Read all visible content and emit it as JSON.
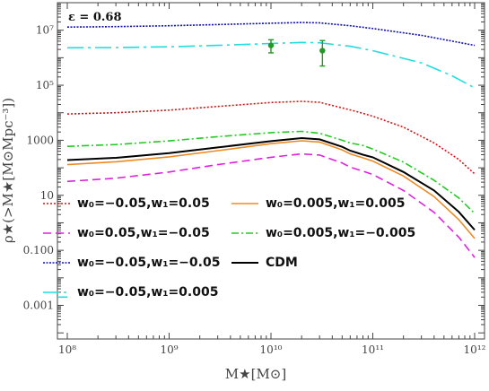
{
  "chart_data": {
    "type": "line",
    "annotation": "ε = 0.68",
    "xlabel": "M★[M⊙]",
    "ylabel": "ρ★(>M★[M⊙Mpc⁻³])",
    "x_scale": "log",
    "y_scale": "log",
    "xlim": [
      80000000.0,
      1250000000000.0
    ],
    "ylim": [
      6e-05,
      100000000.0
    ],
    "x_ticks": [
      {
        "value": 100000000.0,
        "label": "10⁸"
      },
      {
        "value": 1000000000.0,
        "label": "10⁹"
      },
      {
        "value": 10000000000.0,
        "label": "10¹⁰"
      },
      {
        "value": 100000000000.0,
        "label": "10¹¹"
      },
      {
        "value": 1000000000000.0,
        "label": "10¹²"
      }
    ],
    "y_ticks": [
      {
        "value": 10000000.0,
        "label": "10⁷"
      },
      {
        "value": 100000.0,
        "label": "10⁵"
      },
      {
        "value": 1000,
        "label": "1000"
      },
      {
        "value": 10,
        "label": "10"
      },
      {
        "value": 0.1,
        "label": "0.100"
      },
      {
        "value": 0.001,
        "label": "0.001"
      }
    ],
    "legend": [
      {
        "label": "w₀=−0.05,w₁=0.05",
        "color": "#dd1111",
        "dash": "2,2"
      },
      {
        "label": "w₀=0.005,w₁=0.005",
        "color": "#ee8a22",
        "dash": ""
      },
      {
        "label": "w₀=0.05,w₁=−0.05",
        "color": "#dd22dd",
        "dash": "9,5"
      },
      {
        "label": "w₀=0.005,w₁=−0.005",
        "color": "#22cc22",
        "dash": "8,3,2,3"
      },
      {
        "label": "w₀=−0.05,w₁=−0.05",
        "color": "#1111bb",
        "dash": "2,1.5"
      },
      {
        "label": "CDM",
        "color": "#000000",
        "dash": ""
      },
      {
        "label": "w₀=−0.05,w₁=0.005",
        "color": "#22dddd",
        "dash": "18,5,3,5"
      }
    ],
    "series": [
      {
        "name": "w₀=−0.05,w₁=−0.05",
        "color": "#1111bb",
        "dash": "2,1.5",
        "x": [
          100000000.0,
          300000000.0,
          1000000000.0,
          3000000000.0,
          10000000000.0,
          20000000000.0,
          30000000000.0,
          60000000000.0,
          100000000000.0,
          300000000000.0,
          1000000000000.0
        ],
        "y": [
          13000000.0,
          13500000.0,
          14500000.0,
          16000000.0,
          18000000.0,
          19000000.0,
          18500000.0,
          14500000.0,
          11500000.0,
          6500000.0,
          2800000.0
        ]
      },
      {
        "name": "w₀=−0.05,w₁=0.005",
        "color": "#22dddd",
        "dash": "18,5,3,5",
        "x": [
          100000000.0,
          300000000.0,
          1000000000.0,
          3000000000.0,
          10000000000.0,
          20000000000.0,
          30000000000.0,
          60000000000.0,
          100000000000.0,
          300000000000.0,
          600000000000.0,
          1000000000000.0
        ],
        "y": [
          2300000.0,
          2350000.0,
          2500000.0,
          2800000.0,
          3300000.0,
          3600000.0,
          3500000.0,
          2600000.0,
          1800000.0,
          650000.0,
          220000.0,
          80000.0
        ]
      },
      {
        "name": "w₀=−0.05,w₁=0.05",
        "color": "#dd1111",
        "dash": "2,2",
        "x": [
          100000000.0,
          300000000.0,
          1000000000.0,
          3000000000.0,
          10000000000.0,
          20000000000.0,
          30000000000.0,
          50000000000.0,
          70000000000.0,
          100000000000.0,
          200000000000.0,
          400000000000.0,
          700000000000.0,
          1000000000000.0
        ],
        "y": [
          9000,
          10000,
          12500,
          17000,
          23500,
          26000,
          24000,
          15000,
          11000,
          7500,
          3000,
          800,
          200,
          60
        ]
      },
      {
        "name": "w₀=0.005,w₁=−0.005",
        "color": "#22cc22",
        "dash": "8,3,2,3",
        "x": [
          100000000.0,
          300000000.0,
          1000000000.0,
          3000000000.0,
          10000000000.0,
          20000000000.0,
          30000000000.0,
          50000000000.0,
          60000000000.0,
          80000000000.0,
          100000000000.0,
          200000000000.0,
          400000000000.0,
          700000000000.0,
          1000000000000.0
        ],
        "y": [
          600,
          700,
          950,
          1350,
          1900,
          2100,
          1800,
          1000,
          800,
          650,
          480,
          160,
          35,
          8,
          2.2
        ]
      },
      {
        "name": "CDM",
        "color": "#000000",
        "dash": "",
        "x": [
          100000000.0,
          300000000.0,
          1000000000.0,
          3000000000.0,
          10000000000.0,
          20000000000.0,
          30000000000.0,
          50000000000.0,
          60000000000.0,
          80000000000.0,
          100000000000.0,
          200000000000.0,
          400000000000.0,
          700000000000.0,
          1000000000000.0
        ],
        "y": [
          190,
          230,
          340,
          550,
          930,
          1200,
          1080,
          580,
          420,
          300,
          240,
          70,
          15,
          2.5,
          0.55
        ]
      },
      {
        "name": "w₀=0.005,w₁=0.005",
        "color": "#ee8a22",
        "dash": "",
        "x": [
          100000000.0,
          300000000.0,
          1000000000.0,
          3000000000.0,
          10000000000.0,
          20000000000.0,
          30000000000.0,
          50000000000.0,
          60000000000.0,
          80000000000.0,
          100000000000.0,
          200000000000.0,
          400000000000.0,
          700000000000.0,
          1000000000000.0
        ],
        "y": [
          130,
          165,
          250,
          420,
          750,
          960,
          860,
          450,
          320,
          230,
          175,
          50,
          9,
          1.3,
          0.27
        ]
      },
      {
        "name": "w₀=0.05,w₁=−0.05",
        "color": "#dd22dd",
        "dash": "9,5",
        "x": [
          100000000.0,
          300000000.0,
          1000000000.0,
          3000000000.0,
          10000000000.0,
          20000000000.0,
          30000000000.0,
          50000000000.0,
          60000000000.0,
          80000000000.0,
          100000000000.0,
          200000000000.0,
          400000000000.0,
          700000000000.0,
          1000000000000.0
        ],
        "y": [
          32,
          42,
          70,
          130,
          240,
          320,
          290,
          150,
          105,
          75,
          57,
          15,
          2.4,
          0.3,
          0.055
        ]
      }
    ],
    "extra_segment": {
      "color": "#22dddd",
      "x": [
        80000000.0,
        100000000.0
      ],
      "y": [
        0.002,
        0.002
      ]
    },
    "data_points": [
      {
        "x": 10000000000.0,
        "y": 2800000.0,
        "y_low": 1500000.0,
        "y_high": 4500000.0,
        "color": "#229922"
      },
      {
        "x": 32000000000.0,
        "y": 1800000.0,
        "y_low": 500000.0,
        "y_high": 4200000.0,
        "color": "#229922"
      }
    ]
  }
}
